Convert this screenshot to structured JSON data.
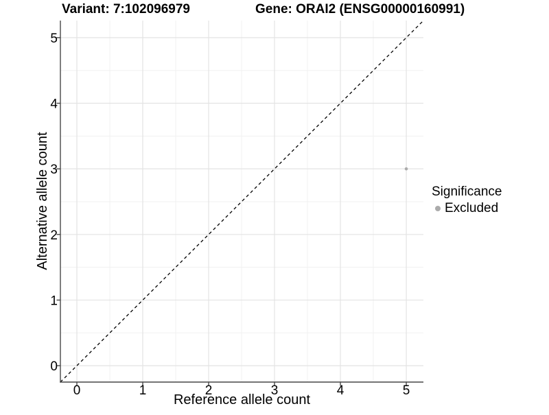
{
  "titles": {
    "variant": "Variant: 7:102096979",
    "gene": "Gene: ORAI2 (ENSG00000160991)"
  },
  "chart_data": {
    "type": "scatter",
    "title_left": "Variant: 7:102096979",
    "title_right": "Gene: ORAI2 (ENSG00000160991)",
    "xlabel": "Reference allele count",
    "ylabel": "Alternative allele count",
    "xlim": [
      -0.25,
      5.26
    ],
    "ylim": [
      -0.25,
      5.26
    ],
    "x_ticks": [
      0,
      1,
      2,
      3,
      4,
      5
    ],
    "y_ticks": [
      0,
      1,
      2,
      3,
      4,
      5
    ],
    "grid": "major+minor",
    "reference_line": {
      "style": "dashed",
      "from": [
        -0.25,
        -0.25
      ],
      "to": [
        5.26,
        5.26
      ],
      "color": "#000000"
    },
    "series": [
      {
        "name": "Excluded",
        "color": "#ababab",
        "points": [
          {
            "x": 5,
            "y": 3
          }
        ]
      }
    ],
    "legend": {
      "title": "Significance",
      "position": "right",
      "entries": [
        {
          "label": "Excluded",
          "color": "#ababab"
        }
      ]
    },
    "style": {
      "background": "#ffffff",
      "grid_major_color": "#e3e3e3",
      "grid_minor_color": "#f1f1f1",
      "axis_color": "#474747",
      "text_color": "#000000",
      "point_color": "#ababab"
    }
  }
}
